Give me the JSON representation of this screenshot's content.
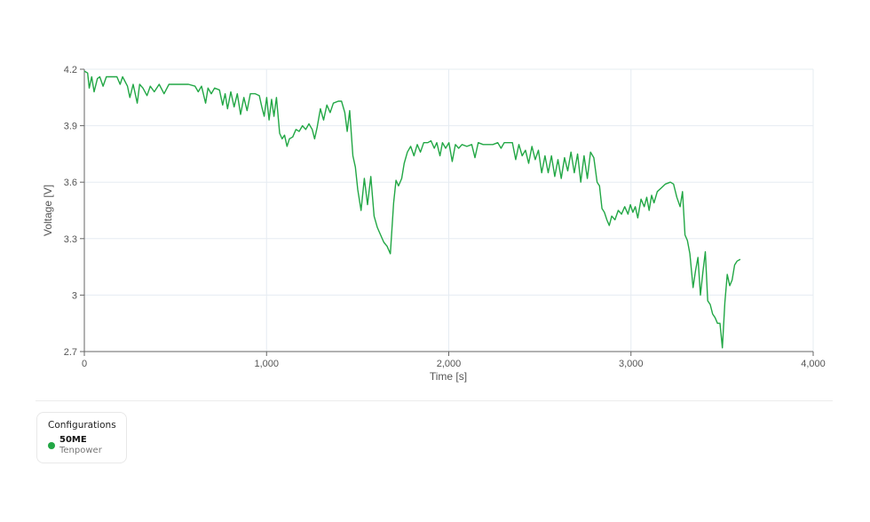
{
  "chart_data": {
    "type": "line",
    "title": "",
    "xlabel": "Time [s]",
    "ylabel": "Voltage [V]",
    "xlim": [
      0,
      4000
    ],
    "ylim": [
      2.7,
      4.2
    ],
    "x_ticks": [
      0,
      1000,
      2000,
      3000,
      4000
    ],
    "x_tick_labels": [
      "0",
      "1,000",
      "2,000",
      "3,000",
      "4,000"
    ],
    "y_ticks": [
      2.7,
      3.0,
      3.3,
      3.6,
      3.9,
      4.2
    ],
    "y_tick_labels": [
      "2.7",
      "3",
      "3.3",
      "3.6",
      "3.9",
      "4.2"
    ],
    "grid": true,
    "legend_position": "bottom-left",
    "series": [
      {
        "name": "50ME",
        "subtitle": "Tenpower",
        "color": "#22a745",
        "points": [
          [
            0,
            4.19
          ],
          [
            20,
            4.18
          ],
          [
            30,
            4.1
          ],
          [
            45,
            4.16
          ],
          [
            60,
            4.08
          ],
          [
            80,
            4.15
          ],
          [
            95,
            4.16
          ],
          [
            115,
            4.11
          ],
          [
            135,
            4.16
          ],
          [
            200,
            4.16
          ],
          [
            220,
            4.12
          ],
          [
            235,
            4.16
          ],
          [
            265,
            4.11
          ],
          [
            280,
            4.05
          ],
          [
            300,
            4.12
          ],
          [
            325,
            4.02
          ],
          [
            340,
            4.12
          ],
          [
            360,
            4.1
          ],
          [
            385,
            4.06
          ],
          [
            405,
            4.11
          ],
          [
            430,
            4.08
          ],
          [
            460,
            4.12
          ],
          [
            490,
            4.07
          ],
          [
            520,
            4.12
          ],
          [
            560,
            4.12
          ],
          [
            600,
            4.12
          ],
          [
            640,
            4.12
          ],
          [
            680,
            4.11
          ],
          [
            700,
            4.08
          ],
          [
            720,
            4.11
          ],
          [
            745,
            4.02
          ],
          [
            760,
            4.1
          ],
          [
            780,
            4.07
          ],
          [
            800,
            4.1
          ],
          [
            830,
            4.09
          ],
          [
            850,
            4.01
          ],
          [
            865,
            4.07
          ],
          [
            880,
            3.99
          ],
          [
            900,
            4.08
          ],
          [
            920,
            4.0
          ],
          [
            940,
            4.07
          ],
          [
            960,
            3.96
          ],
          [
            980,
            4.05
          ],
          [
            1000,
            3.98
          ],
          [
            1020,
            4.07
          ],
          [
            1050,
            4.07
          ],
          [
            1075,
            4.06
          ],
          [
            1090,
            4.0
          ],
          [
            1105,
            3.95
          ],
          [
            1120,
            4.05
          ],
          [
            1135,
            3.93
          ],
          [
            1150,
            4.04
          ],
          [
            1165,
            3.95
          ],
          [
            1180,
            4.05
          ],
          [
            1200,
            3.86
          ],
          [
            1215,
            3.83
          ],
          [
            1230,
            3.85
          ],
          [
            1245,
            3.79
          ],
          [
            1260,
            3.83
          ],
          [
            1280,
            3.84
          ],
          [
            1300,
            3.88
          ],
          [
            1320,
            3.87
          ],
          [
            1340,
            3.9
          ],
          [
            1360,
            3.88
          ],
          [
            1380,
            3.91
          ],
          [
            1400,
            3.88
          ],
          [
            1415,
            3.83
          ],
          [
            1430,
            3.89
          ],
          [
            1450,
            3.99
          ],
          [
            1470,
            3.93
          ],
          [
            1490,
            4.01
          ],
          [
            1510,
            3.97
          ],
          [
            1530,
            4.02
          ],
          [
            1560,
            4.03
          ],
          [
            1580,
            4.03
          ],
          [
            1600,
            3.97
          ],
          [
            1615,
            3.87
          ],
          [
            1630,
            3.98
          ],
          [
            1650,
            3.74
          ],
          [
            1665,
            3.68
          ],
          [
            1680,
            3.56
          ],
          [
            1700,
            3.45
          ],
          [
            1720,
            3.62
          ],
          [
            1740,
            3.48
          ],
          [
            1760,
            3.63
          ],
          [
            1780,
            3.42
          ],
          [
            1800,
            3.36
          ],
          [
            1820,
            3.32
          ],
          [
            1840,
            3.28
          ],
          [
            1860,
            3.26
          ],
          [
            1880,
            3.22
          ],
          [
            1900,
            3.49
          ],
          [
            1915,
            3.61
          ],
          [
            1930,
            3.58
          ],
          [
            1950,
            3.62
          ],
          [
            1965,
            3.7
          ],
          [
            1985,
            3.76
          ],
          [
            2005,
            3.79
          ],
          [
            2025,
            3.74
          ],
          [
            2045,
            3.8
          ],
          [
            2065,
            3.76
          ],
          [
            2085,
            3.81
          ],
          [
            2110,
            3.81
          ],
          [
            2130,
            3.82
          ],
          [
            2150,
            3.78
          ],
          [
            2165,
            3.81
          ],
          [
            2185,
            3.74
          ],
          [
            2200,
            3.81
          ],
          [
            2220,
            3.78
          ],
          [
            2240,
            3.81
          ],
          [
            2260,
            3.71
          ],
          [
            2280,
            3.8
          ],
          [
            2300,
            3.78
          ],
          [
            2320,
            3.8
          ],
          [
            2350,
            3.79
          ],
          [
            2380,
            3.8
          ],
          [
            2400,
            3.73
          ],
          [
            2420,
            3.81
          ],
          [
            2450,
            3.8
          ],
          [
            2480,
            3.8
          ],
          [
            2510,
            3.8
          ],
          [
            2540,
            3.81
          ],
          [
            2560,
            3.78
          ],
          [
            2580,
            3.81
          ],
          [
            2610,
            3.81
          ],
          [
            2630,
            3.81
          ],
          [
            2650,
            3.72
          ],
          [
            2670,
            3.8
          ],
          [
            2690,
            3.74
          ],
          [
            2710,
            3.77
          ],
          [
            2730,
            3.7
          ],
          [
            2750,
            3.79
          ],
          [
            2770,
            3.72
          ],
          [
            2790,
            3.77
          ],
          [
            2810,
            3.65
          ],
          [
            2830,
            3.74
          ],
          [
            2850,
            3.65
          ],
          [
            2870,
            3.74
          ],
          [
            2890,
            3.63
          ],
          [
            2910,
            3.72
          ],
          [
            2930,
            3.62
          ],
          [
            2950,
            3.73
          ],
          [
            2970,
            3.66
          ],
          [
            2990,
            3.76
          ],
          [
            3010,
            3.65
          ],
          [
            3030,
            3.75
          ],
          [
            3050,
            3.6
          ],
          [
            3070,
            3.74
          ],
          [
            3090,
            3.62
          ],
          [
            3110,
            3.76
          ],
          [
            3130,
            3.73
          ],
          [
            3150,
            3.6
          ],
          [
            3165,
            3.58
          ],
          [
            3180,
            3.46
          ],
          [
            3195,
            3.44
          ],
          [
            3210,
            3.4
          ],
          [
            3225,
            3.37
          ],
          [
            3240,
            3.42
          ],
          [
            3260,
            3.4
          ],
          [
            3280,
            3.45
          ],
          [
            3300,
            3.43
          ],
          [
            3320,
            3.47
          ],
          [
            3340,
            3.43
          ],
          [
            3355,
            3.48
          ],
          [
            3370,
            3.44
          ],
          [
            3385,
            3.47
          ],
          [
            3400,
            3.41
          ],
          [
            3420,
            3.51
          ],
          [
            3440,
            3.47
          ],
          [
            3455,
            3.52
          ],
          [
            3470,
            3.45
          ],
          [
            3485,
            3.53
          ],
          [
            3500,
            3.49
          ],
          [
            3520,
            3.55
          ],
          [
            3545,
            3.57
          ],
          [
            3570,
            3.59
          ],
          [
            3600,
            3.6
          ],
          [
            3620,
            3.59
          ],
          [
            3640,
            3.52
          ],
          [
            3660,
            3.47
          ],
          [
            3675,
            3.55
          ],
          [
            3690,
            3.32
          ],
          [
            3705,
            3.29
          ],
          [
            3720,
            3.22
          ],
          [
            3740,
            3.04
          ],
          [
            3755,
            3.13
          ],
          [
            3770,
            3.2
          ],
          [
            3785,
            3.0
          ],
          [
            3800,
            3.12
          ],
          [
            3815,
            3.23
          ],
          [
            3830,
            2.97
          ],
          [
            3845,
            2.95
          ],
          [
            3860,
            2.9
          ],
          [
            3875,
            2.88
          ],
          [
            3890,
            2.85
          ],
          [
            3905,
            2.85
          ],
          [
            3920,
            2.72
          ],
          [
            3935,
            2.96
          ],
          [
            3950,
            3.11
          ],
          [
            3965,
            3.05
          ],
          [
            3980,
            3.08
          ],
          [
            3995,
            3.16
          ],
          [
            4010,
            3.18
          ],
          [
            4030,
            3.19
          ]
        ]
      }
    ]
  },
  "legend": {
    "title": "Configurations",
    "items": [
      {
        "name": "50ME",
        "subtitle": "Tenpower",
        "color": "#22a745"
      }
    ]
  }
}
